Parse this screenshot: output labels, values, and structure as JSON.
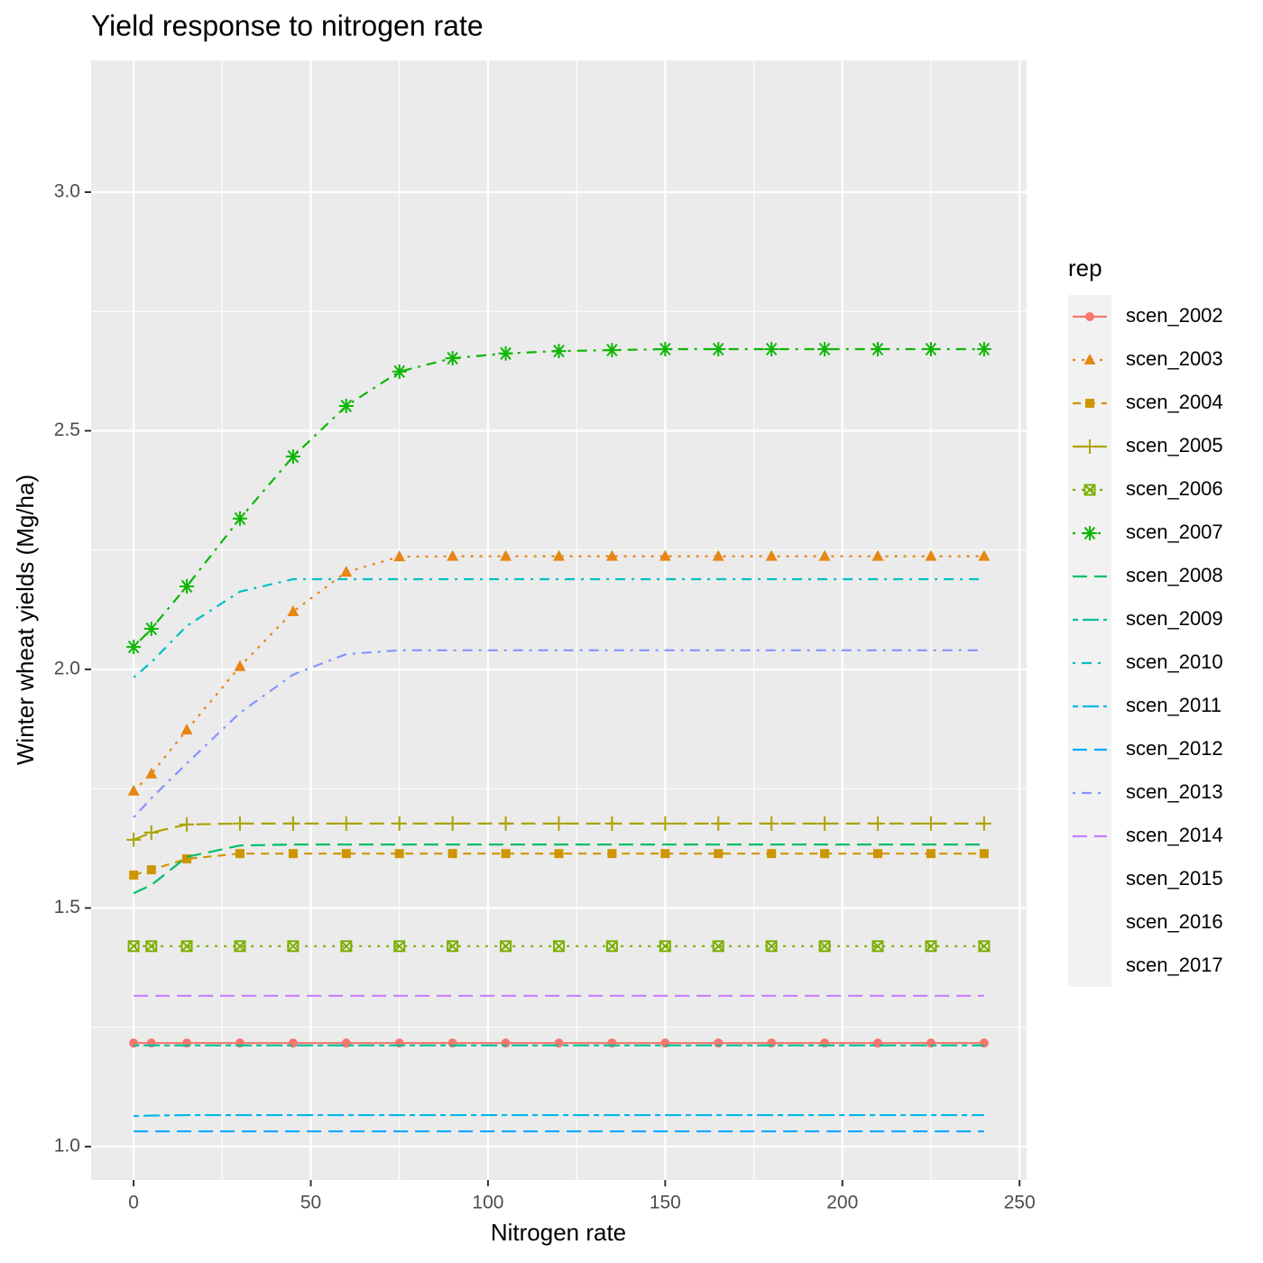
{
  "chart_data": {
    "type": "line",
    "title": "Yield response to nitrogen rate",
    "x_label": "Nitrogen rate",
    "y_label": "Winter wheat yields (Mg/ha)",
    "legend_title": "rep",
    "legend": "right",
    "grid": true,
    "x": [
      0,
      5,
      15,
      30,
      45,
      60,
      75,
      90,
      105,
      120,
      135,
      150,
      165,
      180,
      195,
      210,
      225,
      240
    ],
    "xlim": [
      -12,
      252
    ],
    "ylim": [
      0.93,
      3.276
    ],
    "xticks": [
      0,
      50,
      100,
      150,
      200,
      250
    ],
    "yticks": [
      {
        "value": 1.0,
        "label": "1.0"
      },
      1.5,
      {
        "value": 2.0,
        "label": "2.0"
      },
      2.5,
      {
        "value": 3.0,
        "label": "3.0"
      }
    ],
    "xminor": [
      25,
      75,
      125,
      175,
      225
    ],
    "yminor": [
      1.25,
      1.75,
      2.25,
      2.75
    ],
    "series": [
      {
        "name": "scen_2002",
        "color": "#F8766D",
        "linetype": "solid",
        "marker": "circle",
        "values": [
          1.217,
          1.217,
          1.217,
          1.217,
          1.217,
          1.217,
          1.217,
          1.217,
          1.217,
          1.217,
          1.217,
          1.217,
          1.217,
          1.217,
          1.217,
          1.217,
          1.217,
          1.217
        ]
      },
      {
        "name": "scen_2003",
        "color": "#E68613",
        "linetype": "dotted",
        "marker": "triangle",
        "values": [
          1.745,
          1.781,
          1.873,
          2.006,
          2.121,
          2.204,
          2.236,
          2.237,
          2.237,
          2.237,
          2.237,
          2.237,
          2.237,
          2.237,
          2.237,
          2.237,
          2.237,
          2.237
        ]
      },
      {
        "name": "scen_2004",
        "color": "#CD9600",
        "linetype": "dashed",
        "marker": "square",
        "values": [
          1.569,
          1.58,
          1.603,
          1.614,
          1.614,
          1.614,
          1.614,
          1.614,
          1.614,
          1.614,
          1.614,
          1.614,
          1.614,
          1.614,
          1.614,
          1.614,
          1.614,
          1.614
        ]
      },
      {
        "name": "scen_2005",
        "color": "#ABA300",
        "linetype": "longdash",
        "marker": "plus",
        "values": [
          1.643,
          1.658,
          1.675,
          1.677,
          1.677,
          1.677,
          1.677,
          1.677,
          1.677,
          1.677,
          1.677,
          1.677,
          1.677,
          1.677,
          1.677,
          1.677,
          1.677,
          1.677
        ]
      },
      {
        "name": "scen_2006",
        "color": "#7CAE00",
        "linetype": "dotted",
        "marker": "boxcross",
        "values": [
          1.42,
          1.42,
          1.42,
          1.42,
          1.42,
          1.42,
          1.42,
          1.42,
          1.42,
          1.42,
          1.42,
          1.42,
          1.42,
          1.42,
          1.42,
          1.42,
          1.42,
          1.42
        ]
      },
      {
        "name": "scen_2007",
        "color": "#0CB702",
        "linetype": "dotdash",
        "marker": "asterisk",
        "values": [
          2.047,
          2.085,
          2.174,
          2.316,
          2.446,
          2.552,
          2.624,
          2.652,
          2.662,
          2.667,
          2.669,
          2.671,
          2.671,
          2.671,
          2.671,
          2.671,
          2.671,
          2.671
        ]
      },
      {
        "name": "scen_2008",
        "color": "#00BE67",
        "linetype": "longdash",
        "marker": "none",
        "values": [
          1.531,
          1.548,
          1.607,
          1.631,
          1.633,
          1.633,
          1.633,
          1.633,
          1.633,
          1.633,
          1.633,
          1.633,
          1.633,
          1.633,
          1.633,
          1.633,
          1.633,
          1.633
        ]
      },
      {
        "name": "scen_2009",
        "color": "#00C19A",
        "linetype": "twodash",
        "marker": "none",
        "values": [
          1.212,
          1.212,
          1.212,
          1.212,
          1.212,
          1.212,
          1.212,
          1.212,
          1.212,
          1.212,
          1.212,
          1.212,
          1.212,
          1.212,
          1.212,
          1.212,
          1.212,
          1.212
        ]
      },
      {
        "name": "scen_2010",
        "color": "#00BFC4",
        "linetype": "dotdash",
        "marker": "none",
        "values": [
          1.983,
          2.015,
          2.091,
          2.163,
          2.189,
          2.189,
          2.189,
          2.189,
          2.189,
          2.189,
          2.189,
          2.189,
          2.189,
          2.189,
          2.189,
          2.189,
          2.189,
          2.189
        ]
      },
      {
        "name": "scen_2011",
        "color": "#00B8E7",
        "linetype": "twodash",
        "marker": "none",
        "values": [
          1.064,
          1.065,
          1.066,
          1.066,
          1.066,
          1.066,
          1.066,
          1.066,
          1.066,
          1.066,
          1.066,
          1.066,
          1.066,
          1.066,
          1.066,
          1.066,
          1.066,
          1.066
        ]
      },
      {
        "name": "scen_2012",
        "color": "#00A9FF",
        "linetype": "longdash",
        "marker": "none",
        "values": [
          1.032,
          1.032,
          1.032,
          1.032,
          1.032,
          1.032,
          1.032,
          1.032,
          1.032,
          1.032,
          1.032,
          1.032,
          1.032,
          1.032,
          1.032,
          1.032,
          1.032,
          1.032
        ]
      },
      {
        "name": "scen_2013",
        "color": "#8494FF",
        "linetype": "dotdash",
        "marker": "none",
        "values": [
          1.69,
          1.73,
          1.803,
          1.909,
          1.989,
          2.032,
          2.04,
          2.04,
          2.04,
          2.04,
          2.04,
          2.04,
          2.04,
          2.04,
          2.04,
          2.04,
          2.04,
          2.04
        ]
      },
      {
        "name": "scen_2014",
        "color": "#C77CFF",
        "linetype": "longdash",
        "marker": "none",
        "values": [
          1.316,
          1.316,
          1.316,
          1.316,
          1.316,
          1.316,
          1.316,
          1.316,
          1.316,
          1.316,
          1.316,
          1.316,
          1.316,
          1.316,
          1.316,
          1.316,
          1.316,
          1.316
        ]
      },
      {
        "name": "scen_2015",
        "values": [
          null,
          null,
          null,
          null,
          null,
          null,
          null,
          null,
          null,
          null,
          null,
          null,
          null,
          null,
          null,
          null,
          null,
          null
        ]
      },
      {
        "name": "scen_2016",
        "values": [
          null,
          null,
          null,
          null,
          null,
          null,
          null,
          null,
          null,
          null,
          null,
          null,
          null,
          null,
          null,
          null,
          null,
          null
        ]
      },
      {
        "name": "scen_2017",
        "values": [
          null,
          null,
          null,
          null,
          null,
          null,
          null,
          null,
          null,
          null,
          null,
          null,
          null,
          null,
          null,
          null,
          null,
          null
        ]
      }
    ]
  }
}
